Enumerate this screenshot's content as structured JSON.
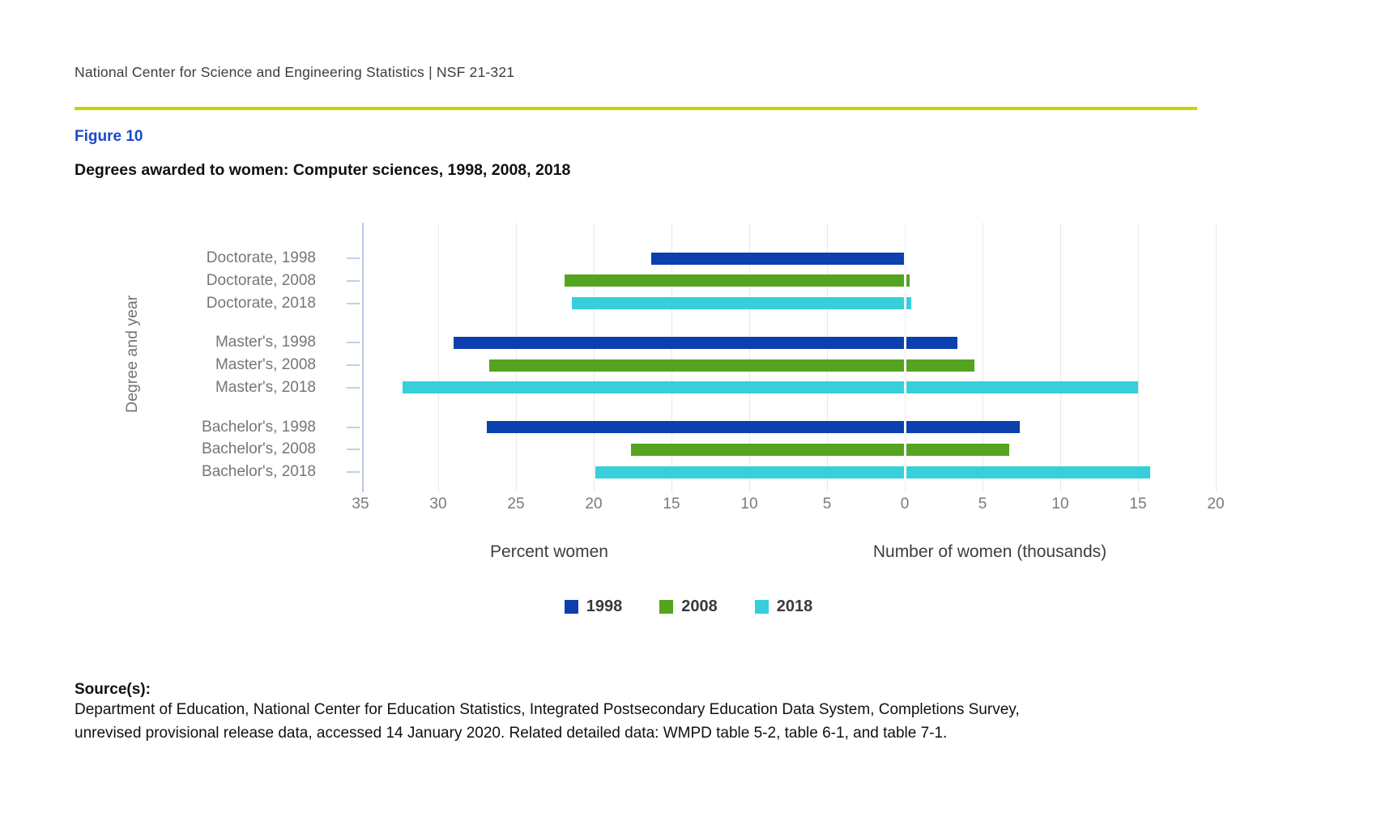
{
  "header": {
    "text": "National Center for Science and Engineering Statistics  |  NSF 21-321"
  },
  "figure": {
    "label": "Figure 10",
    "title": "Degrees awarded to women: Computer sciences, 1998, 2008, 2018"
  },
  "chart_data": {
    "type": "bar",
    "orientation": "horizontal_diverging",
    "y_axis_title": "Degree and year",
    "categories": [
      "Doctorate, 1998",
      "Doctorate, 2008",
      "Doctorate, 2018",
      "Master's, 1998",
      "Master's, 2008",
      "Master's, 2018",
      "Bachelor's, 1998",
      "Bachelor's, 2008",
      "Bachelor's, 2018"
    ],
    "left_axis": {
      "title": "Percent women",
      "ticks": [
        35,
        30,
        25,
        20,
        15,
        10,
        5,
        0
      ],
      "max": 35,
      "direction": "increasing_leftward"
    },
    "right_axis": {
      "title": "Number of women (thousands)",
      "ticks": [
        0,
        5,
        10,
        15,
        20
      ],
      "max": 20
    },
    "series": [
      {
        "name": "Percent women",
        "axis": "left",
        "values": [
          16.3,
          21.9,
          21.4,
          29.0,
          26.7,
          32.3,
          26.9,
          17.6,
          19.9
        ]
      },
      {
        "name": "Number of women (thousands)",
        "axis": "right",
        "values": [
          0.1,
          0.3,
          0.4,
          3.4,
          4.5,
          15.0,
          7.4,
          6.7,
          15.8
        ]
      }
    ],
    "legend": [
      {
        "label": "1998",
        "color": "#0C40AE"
      },
      {
        "label": "2008",
        "color": "#55A420"
      },
      {
        "label": "2018",
        "color": "#36CFDB"
      }
    ],
    "grid": true,
    "legend_position": "bottom-center",
    "accent_colors": {
      "divider": "#C2D500",
      "figure_label": "#1B49CE"
    }
  },
  "source": {
    "heading": "Source(s):",
    "lines": [
      "Department of Education, National Center for Education Statistics, Integrated Postsecondary Education Data System, Completions Survey,",
      "unrevised provisional release data, accessed 14 January 2020. Related detailed data: WMPD table 5-2, table 6-1, and table 7-1."
    ]
  }
}
